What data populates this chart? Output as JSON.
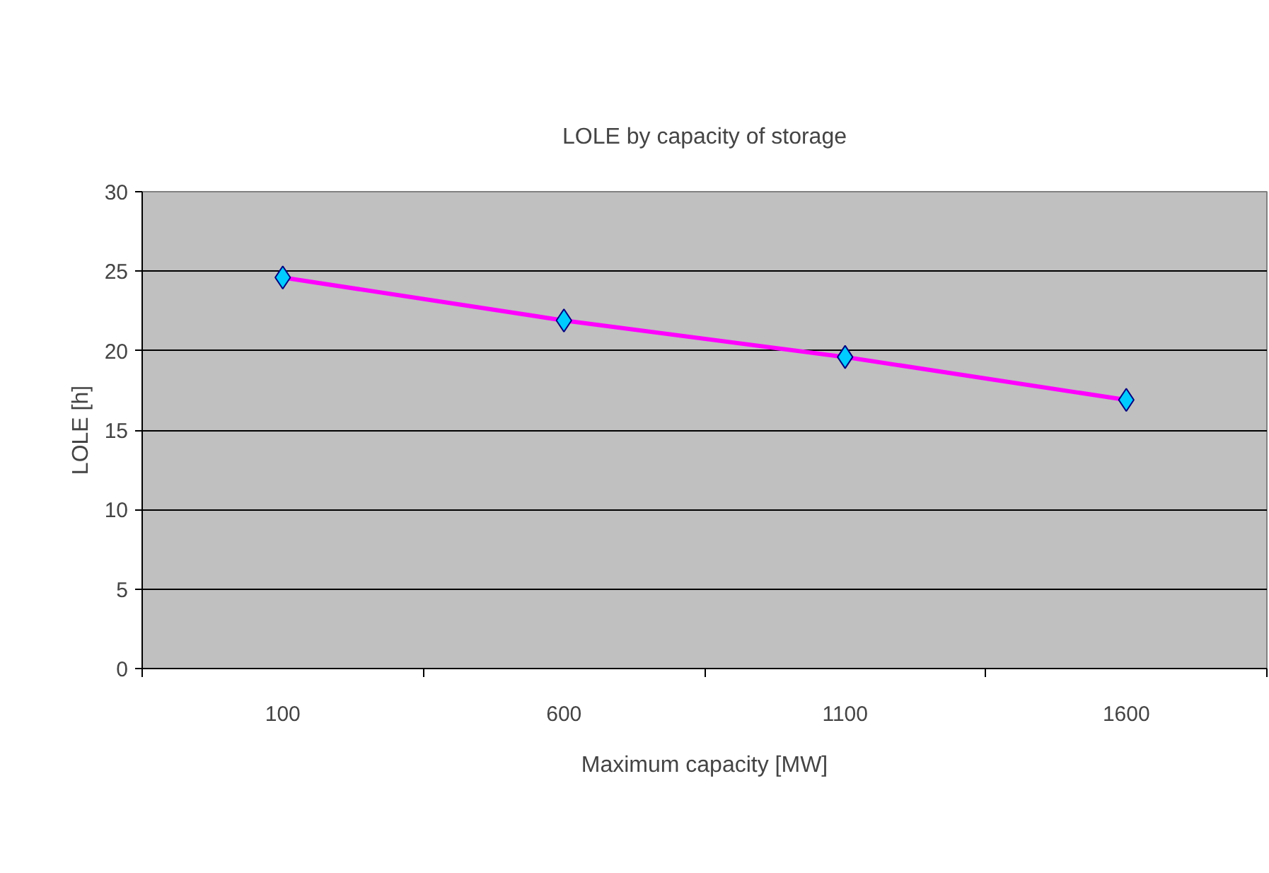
{
  "chart_data": {
    "type": "line",
    "title": "LOLE by capacity of storage",
    "xlabel": "Maximum capacity [MW]",
    "ylabel": "LOLE [h]",
    "categories": [
      "100",
      "600",
      "1100",
      "1600"
    ],
    "series": [
      {
        "color": "#ff00ff",
        "values": [
          24.6,
          21.9,
          19.6,
          16.9
        ]
      }
    ],
    "ylim": [
      0,
      30
    ],
    "yticks": [
      0,
      5,
      10,
      15,
      20,
      25,
      30
    ],
    "grid": "y",
    "marker": "diamond",
    "line_style": "solid"
  }
}
